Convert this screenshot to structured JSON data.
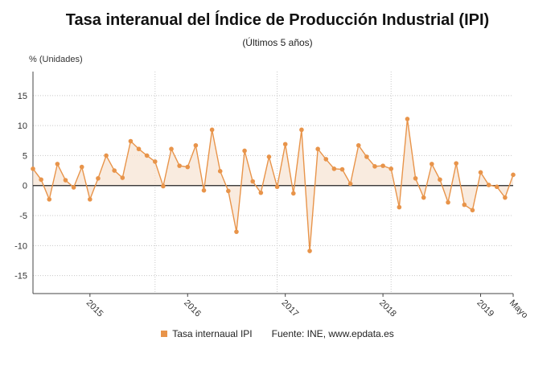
{
  "chart_data": {
    "type": "line",
    "title": "Tasa interanual del Índice de Producción Industrial (IPI)",
    "subtitle": "(Últimos 5 años)",
    "ylabel": "% (Unidades)",
    "ylim": [
      -18,
      19
    ],
    "yticks": [
      15,
      10,
      5,
      0,
      -5,
      -10,
      -15
    ],
    "x_tick_labels": [
      "2015",
      "2016",
      "2017",
      "2018",
      "2019",
      "Mayo"
    ],
    "x_tick_index": [
      7,
      19,
      31,
      43,
      55,
      59
    ],
    "year_gridline_index": [
      15,
      30,
      44
    ],
    "grid": true,
    "legend_position": "bottom",
    "series": [
      {
        "name": "Tasa internaual IPI",
        "color": "#e8944a",
        "values": [
          2.8,
          1.0,
          -2.3,
          3.6,
          0.9,
          -0.3,
          3.1,
          -2.3,
          1.2,
          5.0,
          2.5,
          1.3,
          7.4,
          6.1,
          5.0,
          4.0,
          -0.1,
          6.1,
          3.3,
          3.1,
          6.7,
          -0.8,
          9.3,
          2.4,
          -0.9,
          -7.7,
          5.8,
          0.7,
          -1.2,
          4.8,
          -0.2,
          6.9,
          -1.3,
          9.3,
          -10.9,
          6.1,
          4.4,
          2.8,
          2.7,
          0.3,
          6.7,
          4.8,
          3.2,
          3.3,
          2.8,
          -3.6,
          11.1,
          1.2,
          -2.0,
          3.6,
          1.0,
          -2.8,
          3.7,
          -3.2,
          -4.1,
          2.2,
          0.1,
          -0.2,
          -2.0,
          1.8
        ]
      }
    ]
  },
  "legend": {
    "series_label": "Tasa internaual IPI",
    "source": "Fuente: INE, www.epdata.es"
  }
}
